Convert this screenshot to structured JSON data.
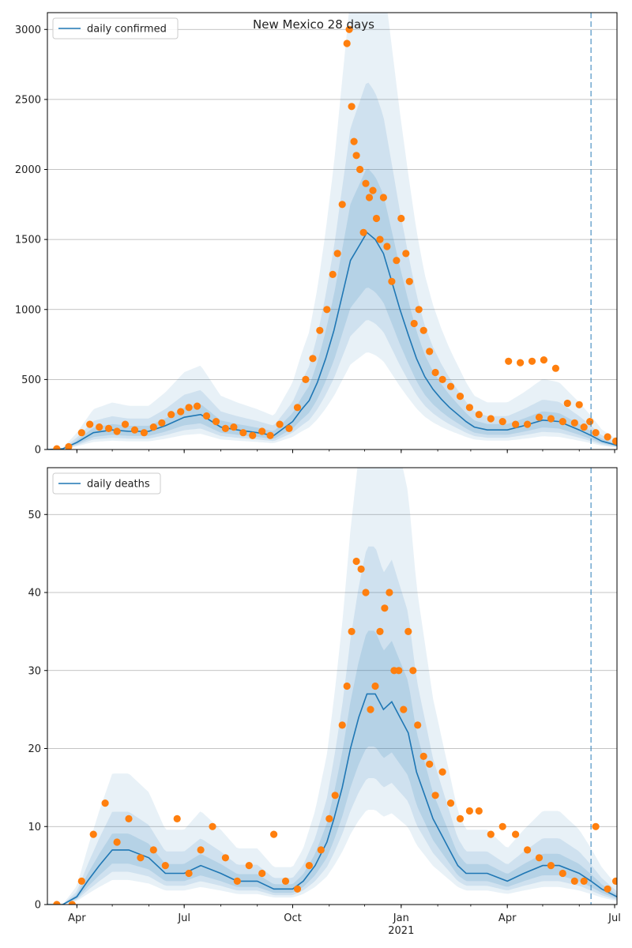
{
  "title": "New Mexico 28 days",
  "colors": {
    "line": "#1f77b4",
    "points": "#ff7f0e",
    "band": "#1f77b4",
    "grid": "#b0b0b0",
    "vline": "#1f77b4"
  },
  "x_ticks": [
    {
      "date": "2020-04-01",
      "label": "Apr"
    },
    {
      "date": "2020-07-01",
      "label": "Jul"
    },
    {
      "date": "2020-10-01",
      "label": "Oct"
    },
    {
      "date": "2021-01-01",
      "label": "Jan"
    },
    {
      "date": "2021-04-01",
      "label": "Apr"
    },
    {
      "date": "2021-07-01",
      "label": "Jul"
    }
  ],
  "year_label": "2021",
  "chart_data": [
    {
      "type": "line",
      "legend": "daily confirmed",
      "legend_position": "top-left",
      "grid": "horizontal",
      "xlim": [
        "2020-03-07",
        "2021-07-03"
      ],
      "ylim": [
        0,
        3120
      ],
      "yticks": [
        0,
        500,
        1000,
        1500,
        2000,
        2500,
        3000
      ],
      "vertical_marker_date": "2021-06-11",
      "series": [
        {
          "kind": "line",
          "x": [
            "2020-03-07",
            "2020-03-20",
            "2020-04-01",
            "2020-04-15",
            "2020-05-01",
            "2020-05-15",
            "2020-06-01",
            "2020-06-15",
            "2020-07-01",
            "2020-07-15",
            "2020-08-01",
            "2020-08-15",
            "2020-09-01",
            "2020-09-15",
            "2020-10-01",
            "2020-10-08",
            "2020-10-15",
            "2020-10-22",
            "2020-10-29",
            "2020-11-05",
            "2020-11-12",
            "2020-11-19",
            "2020-11-26",
            "2020-12-03",
            "2020-12-10",
            "2020-12-17",
            "2020-12-24",
            "2020-12-31",
            "2021-01-07",
            "2021-01-14",
            "2021-01-21",
            "2021-01-28",
            "2021-02-04",
            "2021-02-11",
            "2021-02-18",
            "2021-02-25",
            "2021-03-04",
            "2021-03-15",
            "2021-04-01",
            "2021-04-15",
            "2021-05-01",
            "2021-05-15",
            "2021-06-01",
            "2021-06-11",
            "2021-06-20",
            "2021-07-03"
          ],
          "y": [
            0,
            5,
            50,
            120,
            140,
            130,
            130,
            170,
            230,
            250,
            160,
            140,
            120,
            100,
            200,
            280,
            350,
            480,
            650,
            850,
            1100,
            1350,
            1450,
            1550,
            1500,
            1400,
            1200,
            1000,
            820,
            650,
            520,
            430,
            360,
            300,
            250,
            200,
            160,
            140,
            140,
            170,
            210,
            200,
            140,
            100,
            60,
            30
          ]
        },
        {
          "kind": "scatter",
          "x": [
            "2020-03-15",
            "2020-03-25",
            "2020-04-05",
            "2020-04-12",
            "2020-04-20",
            "2020-04-28",
            "2020-05-05",
            "2020-05-12",
            "2020-05-20",
            "2020-05-28",
            "2020-06-05",
            "2020-06-12",
            "2020-06-20",
            "2020-06-28",
            "2020-07-05",
            "2020-07-12",
            "2020-07-20",
            "2020-07-28",
            "2020-08-05",
            "2020-08-12",
            "2020-08-20",
            "2020-08-28",
            "2020-09-05",
            "2020-09-12",
            "2020-09-20",
            "2020-09-28",
            "2020-10-05",
            "2020-10-12",
            "2020-10-18",
            "2020-10-24",
            "2020-10-30",
            "2020-11-04",
            "2020-11-08",
            "2020-11-12",
            "2020-11-16",
            "2020-11-18",
            "2020-11-20",
            "2020-11-22",
            "2020-11-24",
            "2020-11-27",
            "2020-11-30",
            "2020-12-02",
            "2020-12-05",
            "2020-12-08",
            "2020-12-11",
            "2020-12-14",
            "2020-12-17",
            "2020-12-20",
            "2020-12-24",
            "2020-12-28",
            "2021-01-01",
            "2021-01-05",
            "2021-01-08",
            "2021-01-12",
            "2021-01-16",
            "2021-01-20",
            "2021-01-25",
            "2021-01-30",
            "2021-02-05",
            "2021-02-12",
            "2021-02-20",
            "2021-02-28",
            "2021-03-08",
            "2021-03-18",
            "2021-03-28",
            "2021-04-08",
            "2021-04-18",
            "2021-04-28",
            "2021-05-08",
            "2021-05-18",
            "2021-05-28",
            "2021-06-05",
            "2021-06-15",
            "2021-06-25",
            "2021-07-02",
            "2021-04-02",
            "2021-04-12",
            "2021-04-22",
            "2021-05-02",
            "2021-05-12",
            "2021-05-22",
            "2021-06-01",
            "2021-06-10"
          ],
          "y": [
            5,
            20,
            120,
            180,
            160,
            150,
            130,
            180,
            140,
            120,
            160,
            190,
            250,
            270,
            300,
            310,
            240,
            200,
            150,
            160,
            120,
            100,
            130,
            100,
            180,
            150,
            300,
            500,
            650,
            850,
            1000,
            1250,
            1400,
            1750,
            2900,
            3000,
            2450,
            2200,
            2100,
            2000,
            1550,
            1900,
            1800,
            1850,
            1650,
            1500,
            1800,
            1450,
            1200,
            1350,
            1650,
            1400,
            1200,
            900,
            1000,
            850,
            700,
            550,
            500,
            450,
            380,
            300,
            250,
            220,
            200,
            180,
            180,
            230,
            220,
            200,
            190,
            160,
            120,
            90,
            60,
            630,
            620,
            630,
            640,
            580,
            330,
            320,
            200
          ]
        }
      ]
    },
    {
      "type": "line",
      "legend": "daily deaths",
      "legend_position": "top-left",
      "grid": "horizontal",
      "xlim": [
        "2020-03-07",
        "2021-07-03"
      ],
      "ylim": [
        0,
        56
      ],
      "yticks": [
        0,
        10,
        20,
        30,
        40,
        50
      ],
      "vertical_marker_date": "2021-06-11",
      "series": [
        {
          "kind": "line",
          "x": [
            "2020-03-07",
            "2020-03-20",
            "2020-04-01",
            "2020-04-10",
            "2020-04-20",
            "2020-05-01",
            "2020-05-15",
            "2020-06-01",
            "2020-06-15",
            "2020-07-01",
            "2020-07-15",
            "2020-08-01",
            "2020-08-15",
            "2020-09-01",
            "2020-09-15",
            "2020-10-01",
            "2020-10-10",
            "2020-10-20",
            "2020-10-30",
            "2020-11-05",
            "2020-11-12",
            "2020-11-19",
            "2020-11-26",
            "2020-12-03",
            "2020-12-10",
            "2020-12-17",
            "2020-12-24",
            "2020-12-31",
            "2021-01-07",
            "2021-01-14",
            "2021-01-21",
            "2021-01-28",
            "2021-02-04",
            "2021-02-11",
            "2021-02-18",
            "2021-02-25",
            "2021-03-04",
            "2021-03-15",
            "2021-04-01",
            "2021-04-15",
            "2021-05-01",
            "2021-05-15",
            "2021-06-01",
            "2021-06-11",
            "2021-06-20",
            "2021-07-03"
          ],
          "y": [
            0,
            0,
            1,
            3,
            5,
            7,
            7,
            6,
            4,
            4,
            5,
            4,
            3,
            3,
            2,
            2,
            3,
            5,
            8,
            11,
            15,
            20,
            24,
            27,
            27,
            25,
            26,
            24,
            22,
            17,
            14,
            11,
            9,
            7,
            5,
            4,
            4,
            4,
            3,
            4,
            5,
            5,
            4,
            3,
            2,
            1
          ]
        },
        {
          "kind": "scatter",
          "x": [
            "2020-03-15",
            "2020-03-28",
            "2020-04-05",
            "2020-04-15",
            "2020-04-25",
            "2020-05-05",
            "2020-05-15",
            "2020-05-25",
            "2020-06-05",
            "2020-06-15",
            "2020-06-25",
            "2020-07-05",
            "2020-07-15",
            "2020-07-25",
            "2020-08-05",
            "2020-08-15",
            "2020-08-25",
            "2020-09-05",
            "2020-09-15",
            "2020-09-25",
            "2020-10-05",
            "2020-10-15",
            "2020-10-25",
            "2020-11-01",
            "2020-11-06",
            "2020-11-12",
            "2020-11-16",
            "2020-11-20",
            "2020-11-24",
            "2020-11-28",
            "2020-12-02",
            "2020-12-06",
            "2020-12-10",
            "2020-12-14",
            "2020-12-18",
            "2020-12-22",
            "2020-12-26",
            "2020-12-30",
            "2021-01-03",
            "2021-01-07",
            "2021-01-11",
            "2021-01-15",
            "2021-01-20",
            "2021-01-25",
            "2021-01-30",
            "2021-02-05",
            "2021-02-12",
            "2021-02-20",
            "2021-02-28",
            "2021-03-08",
            "2021-03-18",
            "2021-03-28",
            "2021-04-08",
            "2021-04-18",
            "2021-04-28",
            "2021-05-08",
            "2021-05-18",
            "2021-05-28",
            "2021-06-05",
            "2021-06-15",
            "2021-06-25",
            "2021-07-02"
          ],
          "y": [
            0,
            0,
            3,
            9,
            13,
            8,
            11,
            6,
            7,
            5,
            11,
            4,
            7,
            10,
            6,
            3,
            5,
            4,
            9,
            3,
            2,
            5,
            7,
            11,
            14,
            23,
            28,
            35,
            44,
            43,
            40,
            25,
            28,
            35,
            38,
            40,
            30,
            30,
            25,
            35,
            30,
            23,
            19,
            18,
            14,
            17,
            13,
            11,
            12,
            12,
            9,
            10,
            9,
            7,
            6,
            5,
            4,
            3,
            3,
            10,
            2,
            3
          ]
        }
      ]
    }
  ]
}
